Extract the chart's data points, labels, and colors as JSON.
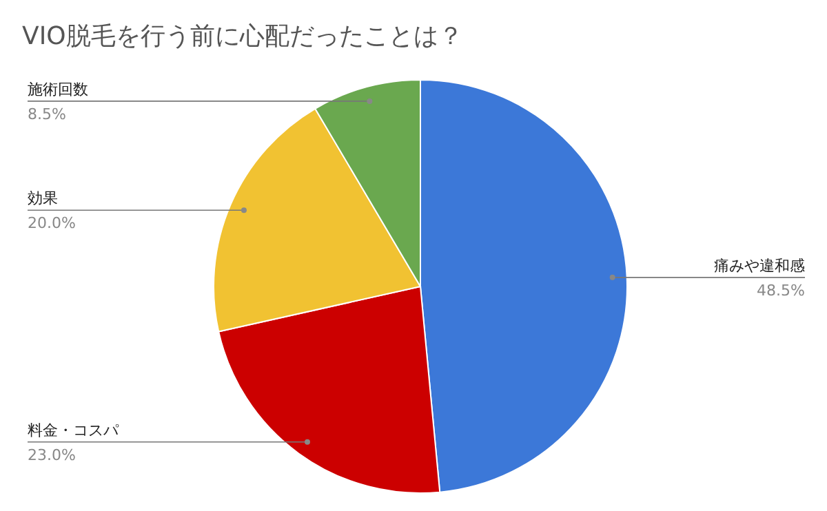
{
  "chart_data": {
    "type": "pie",
    "title": "VIO脱毛を行う前に心配だったことは？",
    "categories": [
      "痛みや違和感",
      "料金・コスパ",
      "効果",
      "施術回数"
    ],
    "values": [
      48.5,
      23.0,
      20.0,
      8.5
    ],
    "colors": [
      "#3c78d8",
      "#cc0000",
      "#f1c232",
      "#6aa84f"
    ],
    "value_labels": [
      "48.5%",
      "23.0%",
      "20.0%",
      "8.5%"
    ]
  }
}
